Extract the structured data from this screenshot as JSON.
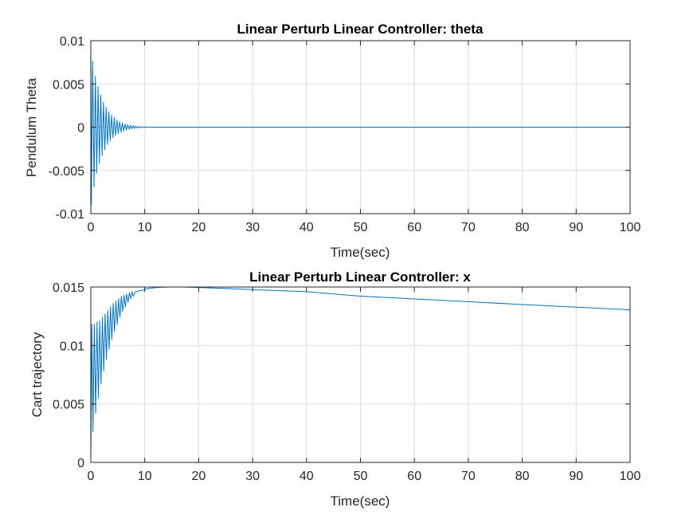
{
  "chart_data": [
    {
      "type": "line",
      "title": "Linear Perturb Linear Controller: theta",
      "xlabel": "Time(sec)",
      "ylabel": "Pendulum Theta",
      "xlim": [
        0,
        100
      ],
      "ylim": [
        -0.01,
        0.01
      ],
      "xticks": [
        0,
        10,
        20,
        30,
        40,
        50,
        60,
        70,
        80,
        90,
        100
      ],
      "yticks": [
        -0.01,
        -0.005,
        0,
        0.005,
        0.01
      ],
      "xtick_labels": [
        "0",
        "10",
        "20",
        "30",
        "40",
        "50",
        "60",
        "70",
        "80",
        "90",
        "100"
      ],
      "ytick_labels": [
        "-0.01",
        "-0.005",
        "0",
        "0.005",
        "0.01"
      ],
      "grid": true,
      "color": "#0072BD",
      "series": [
        {
          "x": [
            0,
            0.1,
            0.35,
            0.6,
            0.85,
            1.1,
            1.35,
            1.6,
            1.85,
            2.1,
            2.35,
            2.6,
            2.85,
            3.1,
            3.35,
            3.6,
            3.85,
            4.1,
            4.35,
            4.6,
            4.85,
            5.1,
            5.35,
            5.6,
            5.85,
            6.1,
            6.35,
            6.6,
            6.85,
            7.1,
            7.35,
            7.6,
            7.85,
            8.1,
            8.35,
            8.6,
            8.85,
            9.1,
            9.35,
            9.6,
            9.85,
            10.1,
            10.35,
            10.6,
            11,
            15,
            20,
            30,
            40,
            50,
            60,
            70,
            80,
            90,
            100
          ],
          "y": [
            0.01,
            -0.009,
            0.0076,
            -0.0069,
            0.0059,
            -0.0053,
            0.0047,
            -0.0042,
            0.0037,
            -0.0033,
            0.0029,
            -0.0026,
            0.0023,
            -0.002,
            0.0018,
            -0.0016,
            0.0014,
            -0.0012,
            0.0011,
            -0.00095,
            0.00083,
            -0.00073,
            0.00064,
            -0.00056,
            0.00049,
            -0.00043,
            0.00037,
            -0.00032,
            0.00028,
            -0.00024,
            0.00021,
            -0.00018,
            0.00016,
            -0.00013,
            0.00011,
            -0.0001,
            8e-05,
            -7e-05,
            6e-05,
            -5e-05,
            4e-05,
            -3e-05,
            2e-05,
            -1e-05,
            0,
            0,
            0,
            0,
            0,
            0,
            0,
            0,
            0,
            0,
            0
          ]
        }
      ]
    },
    {
      "type": "line",
      "title": "Linear Perturb Linear Controller: x",
      "xlabel": "Time(sec)",
      "ylabel": "Cart trajectory",
      "xlim": [
        0,
        100
      ],
      "ylim": [
        0,
        0.015
      ],
      "xticks": [
        0,
        10,
        20,
        30,
        40,
        50,
        60,
        70,
        80,
        90,
        100
      ],
      "yticks": [
        0,
        0.005,
        0.01,
        0.015
      ],
      "xtick_labels": [
        "0",
        "10",
        "20",
        "30",
        "40",
        "50",
        "60",
        "70",
        "80",
        "90",
        "100"
      ],
      "ytick_labels": [
        "0",
        "0.005",
        "0.01",
        "0.015"
      ],
      "grid": true,
      "color": "#0072BD",
      "series": [
        {
          "x": [
            0,
            0.2,
            0.4,
            0.65,
            0.9,
            1.15,
            1.4,
            1.65,
            1.9,
            2.15,
            2.4,
            2.65,
            2.9,
            3.15,
            3.4,
            3.65,
            3.9,
            4.15,
            4.4,
            4.65,
            4.9,
            5.15,
            5.4,
            5.65,
            5.9,
            6.15,
            6.4,
            6.65,
            6.9,
            7.15,
            7.4,
            7.65,
            7.9,
            8.2,
            8.6,
            9,
            9.5,
            10,
            11,
            12,
            13,
            15,
            17,
            20,
            25,
            30,
            40,
            50,
            60,
            70,
            80,
            90,
            100
          ],
          "y": [
            0,
            0.0118,
            0.0026,
            0.0118,
            0.0042,
            0.012,
            0.0055,
            0.0121,
            0.0067,
            0.0124,
            0.0078,
            0.0127,
            0.0088,
            0.013,
            0.0097,
            0.0133,
            0.0105,
            0.0136,
            0.0112,
            0.0138,
            0.0118,
            0.014,
            0.0124,
            0.0142,
            0.0129,
            0.0143,
            0.0133,
            0.0144,
            0.0137,
            0.0145,
            0.014,
            0.0146,
            0.0142,
            0.0146,
            0.0146,
            0.0147,
            0.0147,
            0.0148,
            0.0149,
            0.01495,
            0.01498,
            0.015,
            0.015,
            0.01496,
            0.01487,
            0.01478,
            0.0146,
            0.01422,
            0.01398,
            0.01375,
            0.0135,
            0.01328,
            0.01305
          ]
        }
      ]
    }
  ]
}
